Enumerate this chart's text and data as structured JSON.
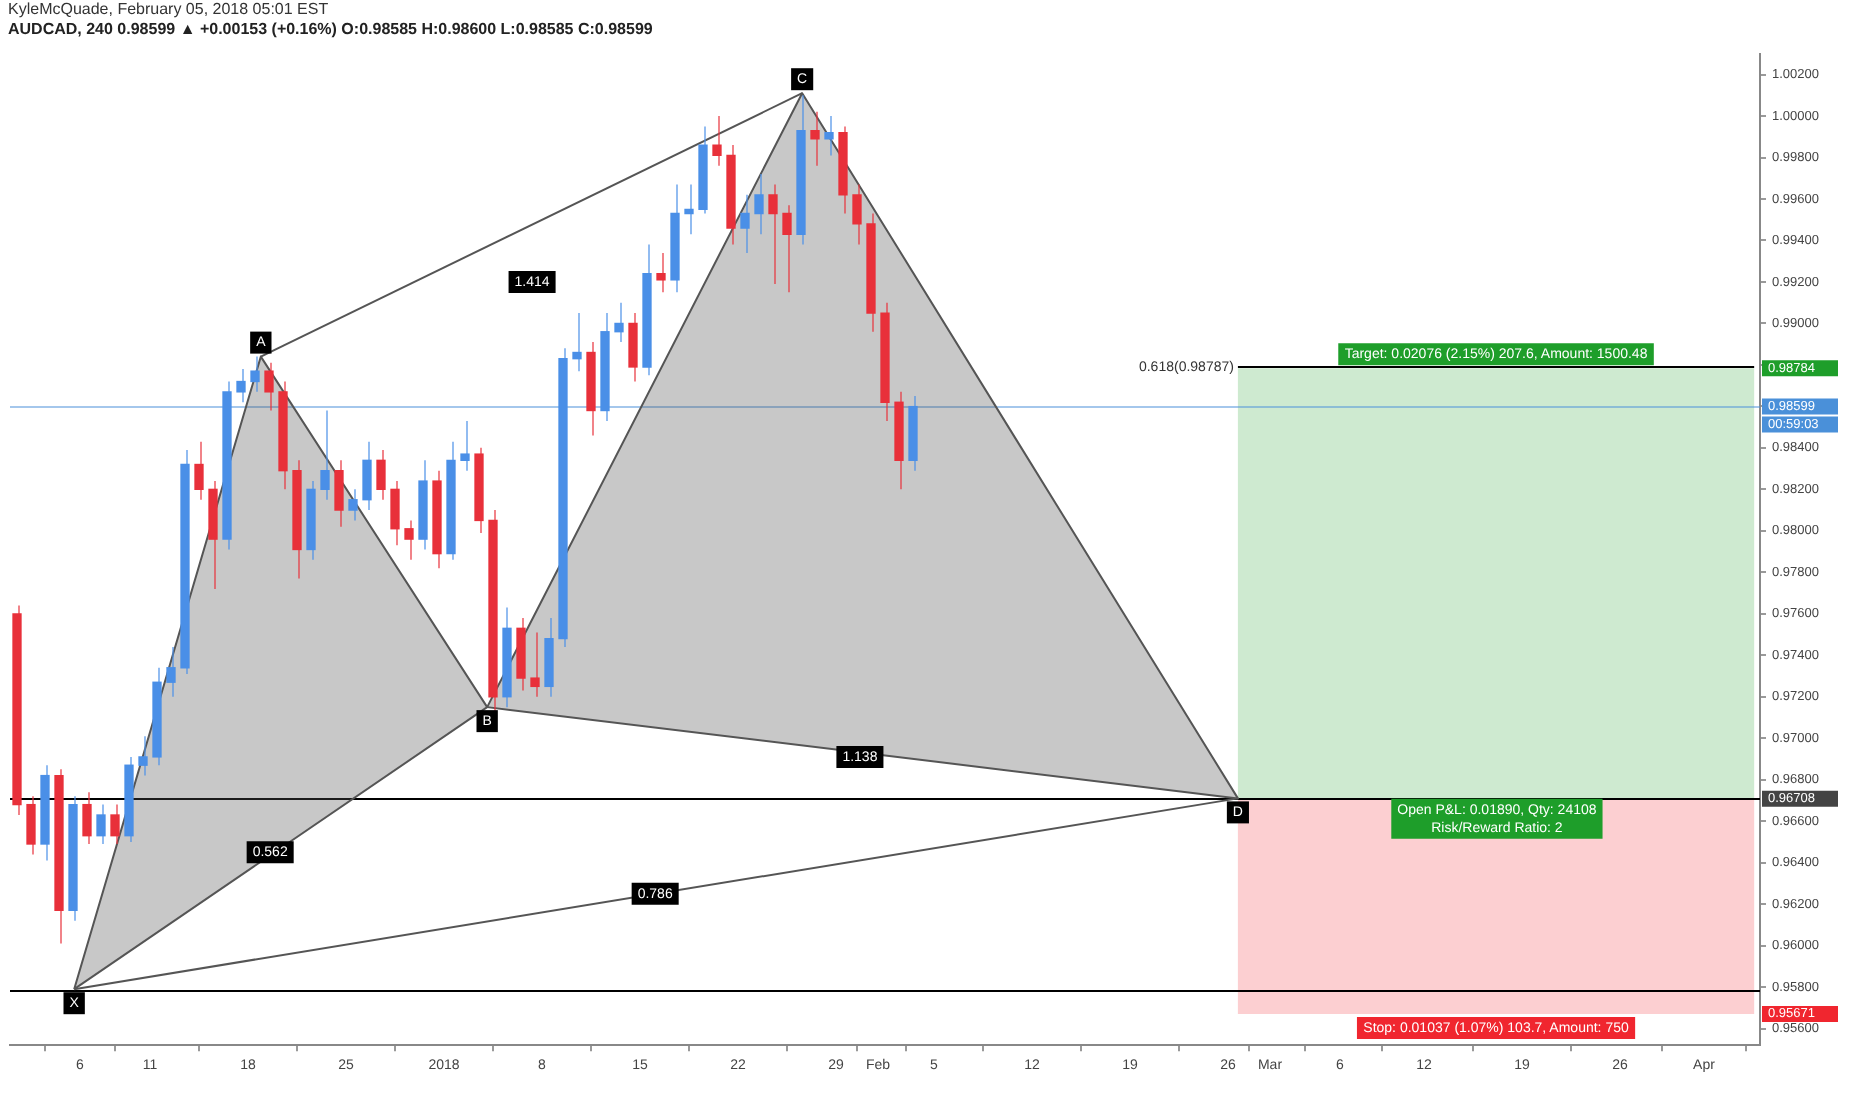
{
  "chart_data": {
    "type": "candlestick",
    "title": "AUDCAD, 240 0.98599 ▲ +0.00153 (+0.16%) O:0.98585 H:0.98600 L:0.98585 C:0.98599",
    "subtitle": "KyleMcQuade, February 05, 2018 05:01 EST",
    "x": [
      "2017-12-01T12:00",
      "2017-12-02T12:00",
      "2017-12-03T12:00",
      "2017-12-04T12:00",
      "2017-12-05T12:00",
      "2017-12-06T12:00",
      "2017-12-07T12:00",
      "2017-12-08T12:00",
      "2017-12-09T12:00",
      "2017-12-10T12:00",
      "2017-12-11T12:00",
      "2017-12-12T12:00",
      "2017-12-13T12:00",
      "2017-12-14T12:00",
      "2017-12-15T12:00",
      "2017-12-16T12:00",
      "2017-12-17T12:00",
      "2017-12-18T12:00",
      "2017-12-19T12:00",
      "2017-12-20T12:00",
      "2017-12-21T12:00",
      "2017-12-22T12:00",
      "2017-12-23T12:00",
      "2017-12-24T12:00",
      "2017-12-25T12:00",
      "2017-12-26T12:00",
      "2017-12-27T12:00",
      "2017-12-28T12:00",
      "2017-12-29T12:00",
      "2017-12-30T12:00",
      "2017-12-31T12:00",
      "2018-01-01T12:00",
      "2018-01-02T12:00",
      "2018-01-03T12:00",
      "2018-01-04T12:00",
      "2018-01-05T12:00",
      "2018-01-06T12:00",
      "2018-01-07T12:00",
      "2018-01-08T12:00",
      "2018-01-09T12:00",
      "2018-01-10T12:00",
      "2018-01-11T12:00",
      "2018-01-12T12:00",
      "2018-01-13T12:00",
      "2018-01-14T12:00",
      "2018-01-15T12:00",
      "2018-01-16T12:00",
      "2018-01-17T12:00",
      "2018-01-18T12:00",
      "2018-01-19T12:00",
      "2018-01-20T12:00",
      "2018-01-21T12:00",
      "2018-01-22T12:00",
      "2018-01-23T12:00",
      "2018-01-24T12:00",
      "2018-01-25T12:00",
      "2018-01-26T12:00",
      "2018-01-27T12:00",
      "2018-01-28T12:00",
      "2018-01-29T12:00",
      "2018-01-30T12:00",
      "2018-01-31T12:00",
      "2018-02-01T12:00",
      "2018-02-02T12:00",
      "2018-02-03T12:00"
    ],
    "ohlc": [
      [
        0.976,
        0.9764,
        0.9663,
        0.9668
      ],
      [
        0.9668,
        0.9672,
        0.9644,
        0.9649
      ],
      [
        0.9649,
        0.9687,
        0.9641,
        0.9682
      ],
      [
        0.9682,
        0.9685,
        0.9601,
        0.9617
      ],
      [
        0.9617,
        0.9672,
        0.9612,
        0.9668
      ],
      [
        0.9668,
        0.9674,
        0.9649,
        0.9653
      ],
      [
        0.9653,
        0.9668,
        0.9649,
        0.9663
      ],
      [
        0.9663,
        0.9668,
        0.9649,
        0.9653
      ],
      [
        0.9653,
        0.9691,
        0.965,
        0.9687
      ],
      [
        0.9687,
        0.9701,
        0.9682,
        0.9691
      ],
      [
        0.9691,
        0.9734,
        0.9687,
        0.9727
      ],
      [
        0.9727,
        0.9744,
        0.972,
        0.9734
      ],
      [
        0.9734,
        0.9839,
        0.9731,
        0.9832
      ],
      [
        0.9832,
        0.9843,
        0.9815,
        0.982
      ],
      [
        0.982,
        0.9824,
        0.9772,
        0.9796
      ],
      [
        0.9796,
        0.9872,
        0.9791,
        0.9867
      ],
      [
        0.9867,
        0.9878,
        0.9862,
        0.9872
      ],
      [
        0.9872,
        0.9884,
        0.9867,
        0.9877
      ],
      [
        0.9877,
        0.9881,
        0.9858,
        0.9867
      ],
      [
        0.9867,
        0.9872,
        0.982,
        0.9829
      ],
      [
        0.9829,
        0.9834,
        0.9777,
        0.9791
      ],
      [
        0.9791,
        0.9824,
        0.9786,
        0.982
      ],
      [
        0.982,
        0.9858,
        0.9815,
        0.9829
      ],
      [
        0.9829,
        0.9834,
        0.9802,
        0.981
      ],
      [
        0.981,
        0.982,
        0.9805,
        0.9815
      ],
      [
        0.9815,
        0.9843,
        0.981,
        0.9834
      ],
      [
        0.9834,
        0.9839,
        0.9815,
        0.982
      ],
      [
        0.982,
        0.9824,
        0.9793,
        0.9801
      ],
      [
        0.9801,
        0.9805,
        0.9786,
        0.9796
      ],
      [
        0.9796,
        0.9834,
        0.9791,
        0.9824
      ],
      [
        0.9824,
        0.9829,
        0.9782,
        0.9789
      ],
      [
        0.9789,
        0.9843,
        0.9786,
        0.9834
      ],
      [
        0.9834,
        0.9853,
        0.9829,
        0.9837
      ],
      [
        0.9837,
        0.984,
        0.9799,
        0.9805
      ],
      [
        0.9805,
        0.981,
        0.9713,
        0.972
      ],
      [
        0.972,
        0.9763,
        0.9715,
        0.9753
      ],
      [
        0.9753,
        0.9758,
        0.9723,
        0.9729
      ],
      [
        0.9729,
        0.9751,
        0.972,
        0.9725
      ],
      [
        0.9725,
        0.9758,
        0.972,
        0.9748
      ],
      [
        0.9748,
        0.9888,
        0.9744,
        0.9883
      ],
      [
        0.9883,
        0.9905,
        0.9877,
        0.9886
      ],
      [
        0.9886,
        0.9891,
        0.9846,
        0.9858
      ],
      [
        0.9858,
        0.9905,
        0.9853,
        0.9896
      ],
      [
        0.9896,
        0.991,
        0.9891,
        0.99
      ],
      [
        0.99,
        0.9905,
        0.9872,
        0.9879
      ],
      [
        0.9879,
        0.9938,
        0.9875,
        0.9924
      ],
      [
        0.9924,
        0.9934,
        0.9915,
        0.9921
      ],
      [
        0.9921,
        0.9967,
        0.9915,
        0.9953
      ],
      [
        0.9953,
        0.9967,
        0.9943,
        0.9955
      ],
      [
        0.9955,
        0.9995,
        0.9953,
        0.9986
      ],
      [
        0.9986,
        1.0,
        0.9976,
        0.9981
      ],
      [
        0.9981,
        0.9986,
        0.9938,
        0.9946
      ],
      [
        0.9946,
        0.9962,
        0.9934,
        0.9953
      ],
      [
        0.9953,
        0.9972,
        0.9943,
        0.9962
      ],
      [
        0.9962,
        0.9967,
        0.9919,
        0.9953
      ],
      [
        0.9953,
        0.9957,
        0.9915,
        0.9943
      ],
      [
        0.9943,
        1.001,
        0.9938,
        0.9993
      ],
      [
        0.9993,
        1.0002,
        0.9976,
        0.9989
      ],
      [
        0.9989,
        1.0,
        0.9981,
        0.9992
      ],
      [
        0.9992,
        0.9995,
        0.9953,
        0.9962
      ],
      [
        0.9962,
        0.9967,
        0.9938,
        0.9948
      ],
      [
        0.9948,
        0.9953,
        0.9896,
        0.9905
      ],
      [
        0.9905,
        0.991,
        0.9853,
        0.9862
      ],
      [
        0.9862,
        0.9867,
        0.982,
        0.9834
      ],
      [
        0.9834,
        0.9865,
        0.9829,
        0.98599
      ]
    ],
    "colors": [
      "#e8303a",
      "#e8303a",
      "#4a8fe7",
      "#e8303a",
      "#4a8fe7",
      "#e8303a",
      "#4a8fe7",
      "#e8303a",
      "#4a8fe7",
      "#4a8fe7",
      "#4a8fe7",
      "#4a8fe7",
      "#4a8fe7",
      "#e8303a",
      "#e8303a",
      "#4a8fe7",
      "#4a8fe7",
      "#4a8fe7",
      "#e8303a",
      "#e8303a",
      "#e8303a",
      "#4a8fe7",
      "#4a8fe7",
      "#e8303a",
      "#4a8fe7",
      "#4a8fe7",
      "#e8303a",
      "#e8303a",
      "#e8303a",
      "#4a8fe7",
      "#e8303a",
      "#4a8fe7",
      "#4a8fe7",
      "#e8303a",
      "#e8303a",
      "#4a8fe7",
      "#e8303a",
      "#e8303a",
      "#4a8fe7",
      "#4a8fe7",
      "#4a8fe7",
      "#e8303a",
      "#4a8fe7",
      "#4a8fe7",
      "#e8303a",
      "#4a8fe7",
      "#e8303a",
      "#4a8fe7",
      "#4a8fe7",
      "#4a8fe7",
      "#e8303a",
      "#e8303a",
      "#4a8fe7",
      "#4a8fe7",
      "#e8303a",
      "#e8303a",
      "#4a8fe7",
      "#e8303a",
      "#4a8fe7",
      "#e8303a",
      "#e8303a",
      "#e8303a",
      "#e8303a",
      "#e8303a",
      "#4a8fe7"
    ],
    "series": [
      {
        "type": "area",
        "color": "#555555",
        "x": [
          "2017-12-05T14:00",
          "2017-12-18T22:00",
          "2018-01-04T02:00",
          "2017-12-05T14:00"
        ],
        "values": [
          0.9579,
          0.9884,
          0.9715,
          0.9579
        ]
      },
      {
        "type": "area",
        "color": "#555555",
        "x": [
          "2018-01-04T02:00",
          "2018-01-26T14:00",
          "2018-02-26T17:00",
          "2018-01-04T02:00"
        ],
        "values": [
          0.9715,
          1.0011,
          0.9671,
          0.9715
        ]
      },
      {
        "type": "line",
        "color": "#555555",
        "x": [
          "2017-12-18T22:00",
          "2018-01-26T14:00"
        ],
        "values": [
          0.9884,
          1.0011
        ]
      },
      {
        "type": "line",
        "color": "#555555",
        "x": [
          "2017-12-05T14:00",
          "2018-02-26T17:00"
        ],
        "values": [
          0.9579,
          0.9671
        ]
      },
      {
        "type": "line",
        "color": "#000000",
        "x": [
          "2018-02-26T17:00",
          "2018-04-04T14:00"
        ],
        "values": [
          0.9879,
          0.9879
        ]
      }
    ],
    "bands": [
      {
        "axis": "y",
        "from": 0.96708,
        "to": 0.98784,
        "label": "Target: 0.02076 (2.15%) 207.6, Amount: 1500.48",
        "color": "#1e9e2a"
      },
      {
        "axis": "y",
        "from": 0.95671,
        "to": 0.96708,
        "label": "Stop: 0.01037 (1.07%) 103.7, Amount: 750",
        "color": "#f0262f"
      }
    ],
    "ref_lines": [
      {
        "axis": "y",
        "value": 0.96708,
        "label": "0.96708",
        "color": "#000000"
      },
      {
        "axis": "y",
        "value": 0.9579,
        "label": null,
        "color": "#000000"
      },
      {
        "axis": "y",
        "value": 0.98599,
        "label": "0.98599\n00:59:03",
        "color": "#4a90d9"
      }
    ],
    "annotations": [
      {
        "text": "X",
        "x": "2017-12-05T14:00",
        "y": 0.9579
      },
      {
        "text": "A",
        "x": "2017-12-18T22:00",
        "y": 0.9884
      },
      {
        "text": "B",
        "x": "2018-01-04T02:00",
        "y": 0.9715
      },
      {
        "text": "C",
        "x": "2018-01-26T14:00",
        "y": 1.0011
      },
      {
        "text": "D",
        "x": "2018-02-26T17:00",
        "y": 0.9671
      },
      {
        "text": "1.414",
        "x": "2018-01-07T07:00",
        "y": 0.992
      },
      {
        "text": "0.562",
        "x": "2017-12-19T14:00",
        "y": 0.9645
      },
      {
        "text": "1.138",
        "x": "2018-01-30T17:00",
        "y": 0.9691
      },
      {
        "text": "0.786",
        "x": "2018-01-16T02:00",
        "y": 0.9625
      },
      {
        "text": "0.618(0.98787)",
        "x": "2018-02-26T17:00",
        "y": 0.9879
      },
      {
        "text": "Open P&L: 0.01890, Qty: 24108\nRisk/Reward Ratio: 2",
        "x": "2018-03-17T05:00",
        "y": 0.96708
      },
      "0.98784",
      "0.95671"
    ],
    "xlim": [
      "2017-12-01",
      "2018-04-05"
    ],
    "xticks": [
      {
        "value": "2017-12-06",
        "label": "6"
      },
      {
        "value": "2017-12-11",
        "label": "11"
      },
      {
        "value": "2017-12-18",
        "label": "18"
      },
      {
        "value": "2017-12-25",
        "label": "25"
      },
      {
        "value": "2018-01-01",
        "label": "2018"
      },
      {
        "value": "2018-01-08",
        "label": "8"
      },
      {
        "value": "2018-01-15",
        "label": "15"
      },
      {
        "value": "2018-01-22",
        "label": "22"
      },
      {
        "value": "2018-01-29",
        "label": "29"
      },
      {
        "value": "2018-02-01",
        "label": "Feb"
      },
      {
        "value": "2018-02-05",
        "label": "5"
      },
      {
        "value": "2018-02-12",
        "label": "12"
      },
      {
        "value": "2018-02-19",
        "label": "19"
      },
      {
        "value": "2018-02-26",
        "label": "26"
      },
      {
        "value": "2018-03-01",
        "label": "Mar"
      },
      {
        "value": "2018-03-06",
        "label": "6"
      },
      {
        "value": "2018-03-12",
        "label": "12"
      },
      {
        "value": "2018-03-19",
        "label": "19"
      },
      {
        "value": "2018-03-26",
        "label": "26"
      },
      {
        "value": "2018-04-01",
        "label": "Apr"
      }
    ],
    "ylim": [
      0.9552,
      1.003
    ],
    "yticks": [
      {
        "value": 0.956,
        "label": "0.95600"
      },
      {
        "value": 0.958,
        "label": "0.95800"
      },
      {
        "value": 0.96,
        "label": "0.96000"
      },
      {
        "value": 0.962,
        "label": "0.96200"
      },
      {
        "value": 0.964,
        "label": "0.96400"
      },
      {
        "value": 0.966,
        "label": "0.96600"
      },
      {
        "value": 0.968,
        "label": "0.96800"
      },
      {
        "value": 0.97,
        "label": "0.97000"
      },
      {
        "value": 0.972,
        "label": "0.97200"
      },
      {
        "value": 0.974,
        "label": "0.97400"
      },
      {
        "value": 0.976,
        "label": "0.97600"
      },
      {
        "value": 0.978,
        "label": "0.97800"
      },
      {
        "value": 0.98,
        "label": "0.98000"
      },
      {
        "value": 0.982,
        "label": "0.98200"
      },
      {
        "value": 0.984,
        "label": "0.98400"
      },
      {
        "value": 0.986,
        "label": null
      },
      {
        "value": 0.988,
        "label": null
      },
      {
        "value": 0.99,
        "label": "0.99000"
      },
      {
        "value": 0.992,
        "label": "0.99200"
      },
      {
        "value": 0.994,
        "label": "0.99400"
      },
      {
        "value": 0.996,
        "label": "0.99600"
      },
      {
        "value": 0.998,
        "label": "0.99800"
      },
      {
        "value": 1.0,
        "label": "1.00000"
      },
      {
        "value": 1.002,
        "label": "1.00200"
      }
    ]
  }
}
